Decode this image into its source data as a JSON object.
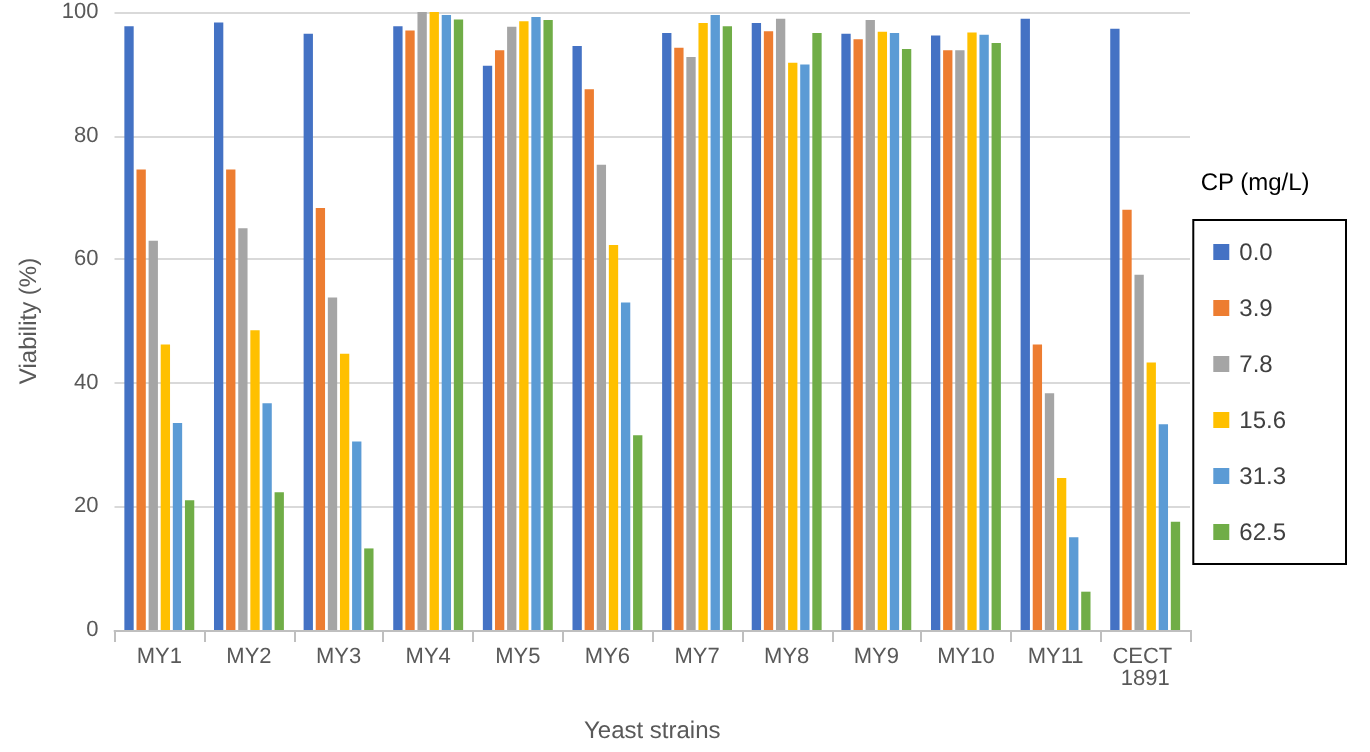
{
  "chart_data": {
    "type": "bar",
    "xlabel": "Yeast strains",
    "ylabel": "Viability (%)",
    "legend_title": "CP (mg/L)",
    "categories": [
      "MY1",
      "MY2",
      "MY3",
      "MY4",
      "MY5",
      "MY6",
      "MY7",
      "MY8",
      "MY9",
      "MY10",
      "MY11",
      "CECT 1891"
    ],
    "series": [
      {
        "name": "0.0",
        "color": "#4472c4",
        "values": [
          97.7,
          98.3,
          96.5,
          97.7,
          91.3,
          94.5,
          96.6,
          98.2,
          96.5,
          96.2,
          98.9,
          97.3
        ]
      },
      {
        "name": "3.9",
        "color": "#ed7d31",
        "values": [
          74.5,
          74.5,
          68.3,
          97,
          93.8,
          87.5,
          94.2,
          96.9,
          95.6,
          93.8,
          46.2,
          68
        ]
      },
      {
        "name": "7.8",
        "color": "#a5a5a5",
        "values": [
          63,
          65,
          53.8,
          100,
          97.6,
          75.3,
          92.7,
          98.9,
          98.7,
          93.8,
          38.3,
          57.5
        ]
      },
      {
        "name": "15.6",
        "color": "#ffc000",
        "values": [
          46.2,
          48.5,
          44.7,
          100,
          98.5,
          62.3,
          98.2,
          91.8,
          96.8,
          96.7,
          24.6,
          43.3
        ]
      },
      {
        "name": "31.3",
        "color": "#5b9bd5",
        "values": [
          33.5,
          36.7,
          30.5,
          99.5,
          99.2,
          53,
          99.5,
          91.5,
          96.6,
          96.3,
          15,
          33.3
        ]
      },
      {
        "name": "62.5",
        "color": "#70ad47",
        "values": [
          21,
          22.3,
          13.2,
          98.8,
          98.7,
          31.5,
          97.7,
          96.6,
          94,
          95,
          6.2,
          17.5
        ]
      }
    ],
    "ylim": [
      0,
      100
    ],
    "yticks": [
      0,
      20,
      40,
      60,
      80,
      100
    ],
    "grid": "y",
    "legend": "right"
  }
}
